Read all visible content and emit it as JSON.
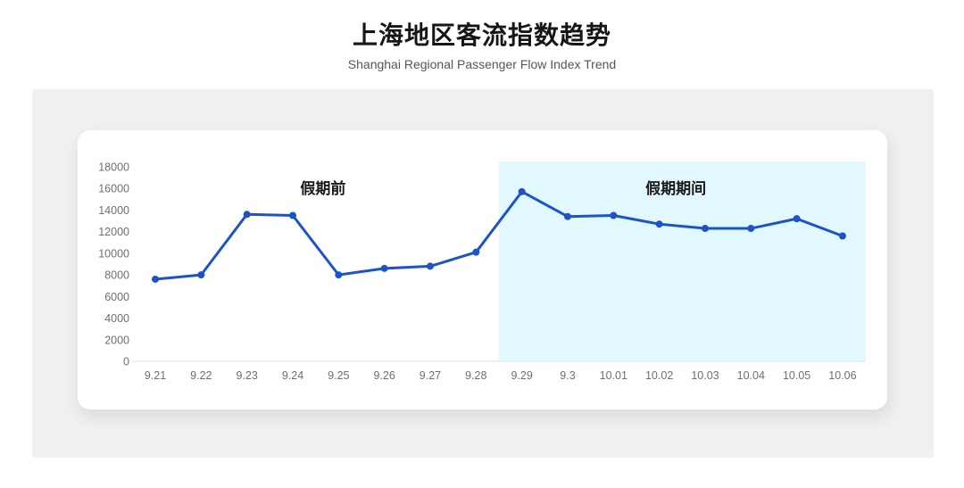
{
  "chart_data": {
    "type": "line",
    "title": "上海地区客流指数趋势",
    "subtitle": "Shanghai Regional Passenger Flow Index Trend",
    "categories": [
      "9.21",
      "9.22",
      "9.23",
      "9.24",
      "9.25",
      "9.26",
      "9.27",
      "9.28",
      "9.29",
      "9.3",
      "10.01",
      "10.02",
      "10.03",
      "10.04",
      "10.05",
      "10.06"
    ],
    "values": [
      7600,
      8000,
      13600,
      13500,
      8000,
      8600,
      8800,
      10100,
      15700,
      13400,
      13500,
      12700,
      12300,
      12300,
      13200,
      11600
    ],
    "xlabel": "",
    "ylabel": "",
    "ylim": [
      0,
      18000
    ],
    "yticks": [
      0,
      2000,
      4000,
      6000,
      8000,
      10000,
      12000,
      14000,
      16000,
      18000
    ],
    "grid": false,
    "legend": "none",
    "line_color": "#1c54c8",
    "band": {
      "start_index": 7.5,
      "end_index": 15.5,
      "fill": "#e1f8fe"
    },
    "annotations": [
      {
        "text": "假期前",
        "x_index": 3.66,
        "y_value": 16000
      },
      {
        "text": "假期期间",
        "x_index": 11.36,
        "y_value": 16000
      }
    ]
  },
  "colors": {
    "panel_bg": "#f0f0f1",
    "card_bg": "#ffffff",
    "axis_line": "#e1e1e1",
    "tick_text": "#6f6f6f",
    "annotation_text": "#1a1a1a"
  }
}
